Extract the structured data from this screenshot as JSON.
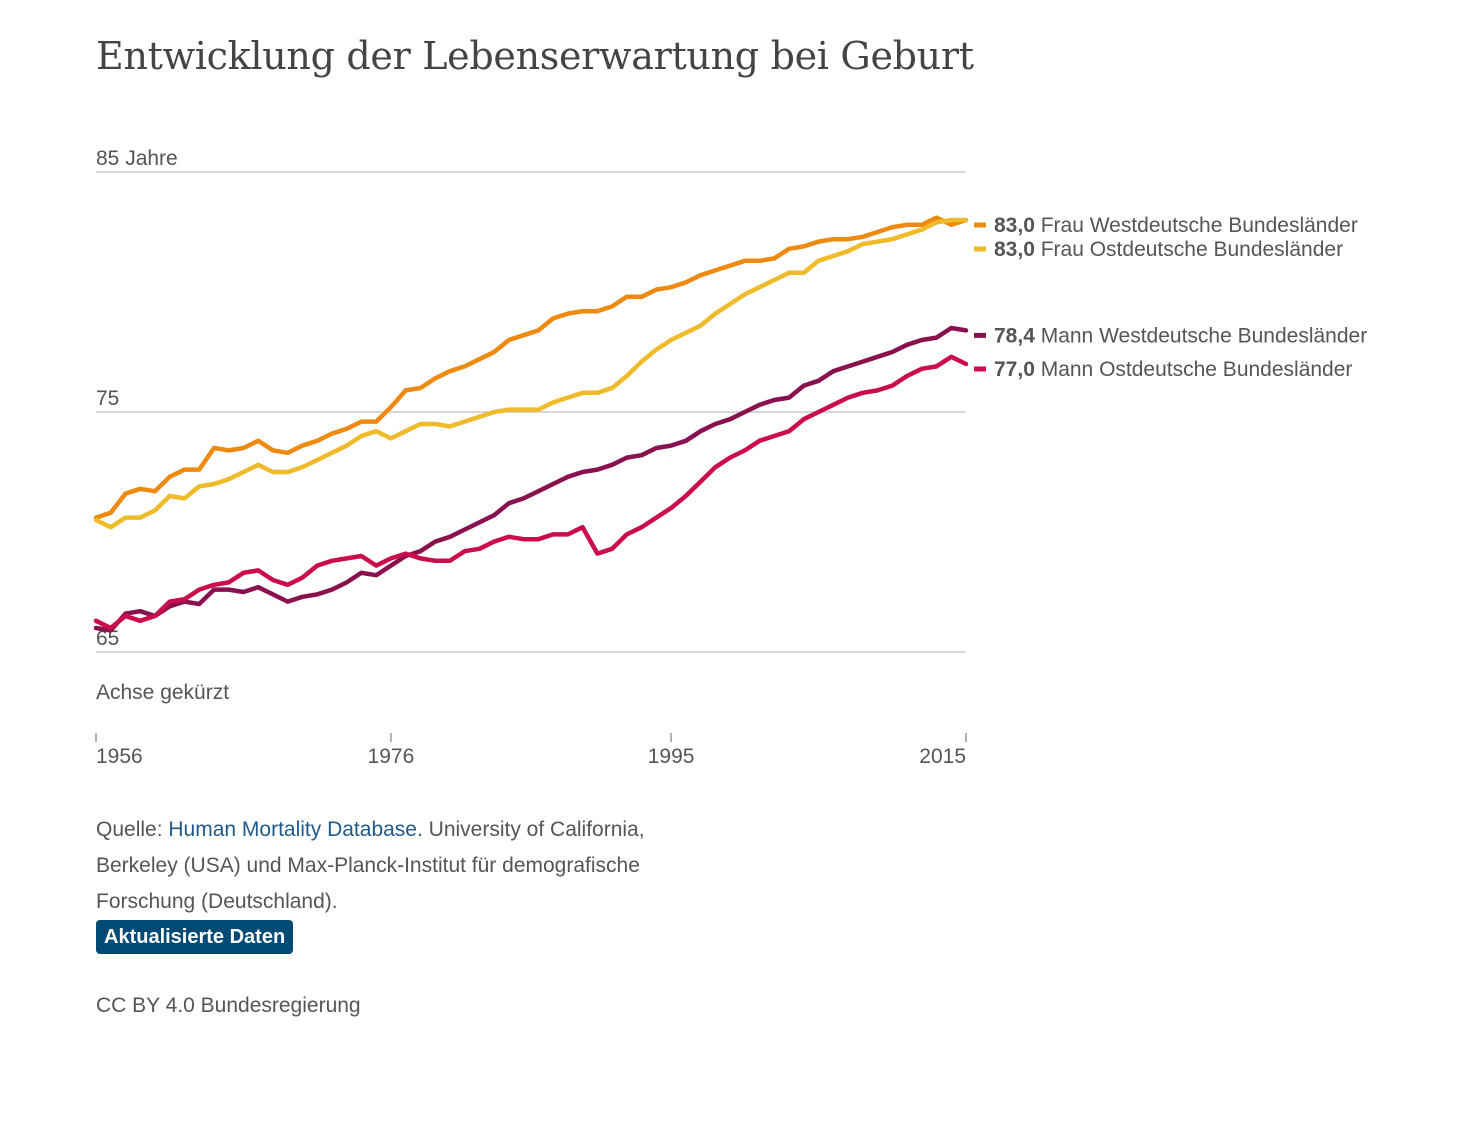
{
  "title": "Entwicklung der Lebenserwartung bei Geburt",
  "axis_note": "Achse gekürzt",
  "source": {
    "prefix": "Quelle: ",
    "link_text": "Human Mortality Database.",
    "rest": " University of California, Berkeley (USA) und Max-Planck-Institut für demografische Forschung (Deutschland)."
  },
  "update_badge": "Aktualisierte Daten",
  "license": "CC BY 4.0 Bundesregierung",
  "chart_data": {
    "type": "line",
    "ylim": [
      65,
      85
    ],
    "xlim": [
      1956,
      2015
    ],
    "y_ticks": [
      {
        "value": 85,
        "label": "85 Jahre"
      },
      {
        "value": 75,
        "label": "75"
      },
      {
        "value": 65,
        "label": "65"
      }
    ],
    "x_ticks": [
      {
        "value": 1956,
        "label": "1956"
      },
      {
        "value": 1976,
        "label": "1976"
      },
      {
        "value": 1995,
        "label": "1995"
      },
      {
        "value": 2015,
        "label": "2015"
      }
    ],
    "x_start": 1956,
    "series": [
      {
        "name": "Frau Westdeutsche Bundesländer",
        "end_label": "83,0",
        "color": "#ee8a10",
        "values": [
          70.6,
          70.8,
          71.6,
          71.8,
          71.7,
          72.3,
          72.6,
          72.6,
          73.5,
          73.4,
          73.5,
          73.8,
          73.4,
          73.3,
          73.6,
          73.8,
          74.1,
          74.3,
          74.6,
          74.6,
          75.2,
          75.9,
          76.0,
          76.4,
          76.7,
          76.9,
          77.2,
          77.5,
          78.0,
          78.2,
          78.4,
          78.9,
          79.1,
          79.2,
          79.2,
          79.4,
          79.8,
          79.8,
          80.1,
          80.2,
          80.4,
          80.7,
          80.9,
          81.1,
          81.3,
          81.3,
          81.4,
          81.8,
          81.9,
          82.1,
          82.2,
          82.2,
          82.3,
          82.5,
          82.7,
          82.8,
          82.8,
          83.1,
          82.8,
          83.0
        ]
      },
      {
        "name": "Frau Ostdeutsche Bundesländer",
        "end_label": "83,0",
        "color": "#f0bb2a",
        "values": [
          70.5,
          70.2,
          70.6,
          70.6,
          70.9,
          71.5,
          71.4,
          71.9,
          72.0,
          72.2,
          72.5,
          72.8,
          72.5,
          72.5,
          72.7,
          73.0,
          73.3,
          73.6,
          74.0,
          74.2,
          73.9,
          74.2,
          74.5,
          74.5,
          74.4,
          74.6,
          74.8,
          75.0,
          75.1,
          75.1,
          75.1,
          75.4,
          75.6,
          75.8,
          75.8,
          76.0,
          76.5,
          77.1,
          77.6,
          78.0,
          78.3,
          78.6,
          79.1,
          79.5,
          79.9,
          80.2,
          80.5,
          80.8,
          80.8,
          81.3,
          81.5,
          81.7,
          82.0,
          82.1,
          82.2,
          82.4,
          82.6,
          82.9,
          83.0,
          83.0
        ]
      },
      {
        "name": "Mann Westdeutsche Bundesländer",
        "end_label": "78,4",
        "color": "#8a1150",
        "values": [
          66.0,
          65.9,
          66.6,
          66.7,
          66.5,
          66.9,
          67.1,
          67.0,
          67.6,
          67.6,
          67.5,
          67.7,
          67.4,
          67.1,
          67.3,
          67.4,
          67.6,
          67.9,
          68.3,
          68.2,
          68.6,
          69.0,
          69.2,
          69.6,
          69.8,
          70.1,
          70.4,
          70.7,
          71.2,
          71.4,
          71.7,
          72.0,
          72.3,
          72.5,
          72.6,
          72.8,
          73.1,
          73.2,
          73.5,
          73.6,
          73.8,
          74.2,
          74.5,
          74.7,
          75.0,
          75.3,
          75.5,
          75.6,
          76.1,
          76.3,
          76.7,
          76.9,
          77.1,
          77.3,
          77.5,
          77.8,
          78.0,
          78.1,
          78.5,
          78.4
        ]
      },
      {
        "name": "Mann Ostdeutsche Bundesländer",
        "end_label": "77,0",
        "color": "#cc0d4c",
        "values": [
          66.3,
          66.0,
          66.5,
          66.3,
          66.5,
          67.1,
          67.2,
          67.6,
          67.8,
          67.9,
          68.3,
          68.4,
          68.0,
          67.8,
          68.1,
          68.6,
          68.8,
          68.9,
          69.0,
          68.6,
          68.9,
          69.1,
          68.9,
          68.8,
          68.8,
          69.2,
          69.3,
          69.6,
          69.8,
          69.7,
          69.7,
          69.9,
          69.9,
          70.2,
          69.1,
          69.3,
          69.9,
          70.2,
          70.6,
          71.0,
          71.5,
          72.1,
          72.7,
          73.1,
          73.4,
          73.8,
          74.0,
          74.2,
          74.7,
          75.0,
          75.3,
          75.6,
          75.8,
          75.9,
          76.1,
          76.5,
          76.8,
          76.9,
          77.3,
          77.0
        ]
      }
    ]
  },
  "colors": {
    "grid": "#cccccc",
    "axis_text": "#555555",
    "link": "#1f5a8a",
    "badge": "#004b76"
  }
}
